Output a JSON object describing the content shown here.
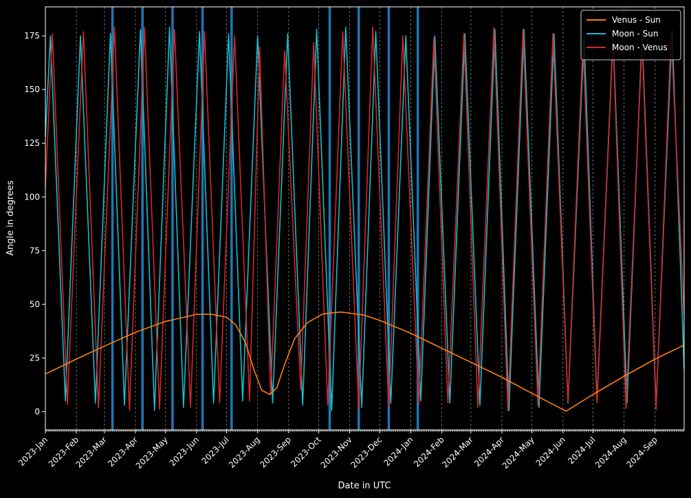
{
  "chart_data": {
    "type": "line",
    "title": "",
    "xlabel": "Date in UTC",
    "ylabel": "Angle in degrees",
    "x_range": [
      "2023-01-01",
      "2024-09-30"
    ],
    "ylim": [
      -8.5,
      188.5
    ],
    "y_ticks": [
      0,
      25,
      50,
      75,
      100,
      125,
      150,
      175
    ],
    "x_ticks": [
      {
        "date": "2023-01-01",
        "label": "2023-Jan"
      },
      {
        "date": "2023-02-01",
        "label": "2023-Feb"
      },
      {
        "date": "2023-03-01",
        "label": "2023-Mar"
      },
      {
        "date": "2023-04-01",
        "label": "2023-Apr"
      },
      {
        "date": "2023-05-01",
        "label": "2023-May"
      },
      {
        "date": "2023-06-01",
        "label": "2023-Jun"
      },
      {
        "date": "2023-07-01",
        "label": "2023-Jul"
      },
      {
        "date": "2023-08-01",
        "label": "2023-Aug"
      },
      {
        "date": "2023-09-01",
        "label": "2023-Sep"
      },
      {
        "date": "2023-10-01",
        "label": "2023-Oct"
      },
      {
        "date": "2023-11-01",
        "label": "2023-Nov"
      },
      {
        "date": "2023-12-01",
        "label": "2023-Dec"
      },
      {
        "date": "2024-01-01",
        "label": "2024-Jan"
      },
      {
        "date": "2024-02-01",
        "label": "2024-Feb"
      },
      {
        "date": "2024-03-01",
        "label": "2024-Mar"
      },
      {
        "date": "2024-04-01",
        "label": "2024-Apr"
      },
      {
        "date": "2024-05-01",
        "label": "2024-May"
      },
      {
        "date": "2024-06-01",
        "label": "2024-Jun"
      },
      {
        "date": "2024-07-01",
        "label": "2024-Jul"
      },
      {
        "date": "2024-08-01",
        "label": "2024-Aug"
      },
      {
        "date": "2024-09-01",
        "label": "2024-Sep"
      }
    ],
    "grid": "vertical dashed at month starts",
    "legend_position": "top-right",
    "series": [
      {
        "name": "Venus - Sun",
        "color": "#ff7f0e",
        "points": [
          [
            "2023-01-01",
            17.5
          ],
          [
            "2023-02-01",
            24.5
          ],
          [
            "2023-03-01",
            30.5
          ],
          [
            "2023-04-01",
            37.0
          ],
          [
            "2023-05-01",
            42.0
          ],
          [
            "2023-06-01",
            45.3
          ],
          [
            "2023-06-15",
            45.4
          ],
          [
            "2023-07-01",
            44.0
          ],
          [
            "2023-07-10",
            40.5
          ],
          [
            "2023-07-20",
            32.0
          ],
          [
            "2023-07-28",
            20.0
          ],
          [
            "2023-08-05",
            10.0
          ],
          [
            "2023-08-13",
            8.0
          ],
          [
            "2023-08-20",
            11.0
          ],
          [
            "2023-08-28",
            22.0
          ],
          [
            "2023-09-07",
            34.0
          ],
          [
            "2023-09-20",
            41.5
          ],
          [
            "2023-10-05",
            45.5
          ],
          [
            "2023-10-23",
            46.4
          ],
          [
            "2023-11-15",
            45.0
          ],
          [
            "2023-12-01",
            42.5
          ],
          [
            "2024-01-01",
            36.5
          ],
          [
            "2024-02-01",
            29.5
          ],
          [
            "2024-03-01",
            23.0
          ],
          [
            "2024-04-01",
            16.0
          ],
          [
            "2024-05-01",
            8.5
          ],
          [
            "2024-06-04",
            0.2
          ],
          [
            "2024-07-01",
            8.0
          ],
          [
            "2024-08-01",
            16.5
          ],
          [
            "2024-09-01",
            24.5
          ],
          [
            "2024-09-30",
            31.0
          ]
        ]
      },
      {
        "name": "Moon - Sun",
        "color": "#17becf",
        "points": [
          [
            "2023-01-01",
            128
          ],
          [
            "2023-01-06",
            175
          ],
          [
            "2023-01-21",
            5
          ],
          [
            "2023-02-05",
            175
          ],
          [
            "2023-02-20",
            4
          ],
          [
            "2023-03-07",
            176
          ],
          [
            "2023-03-21",
            3
          ],
          [
            "2023-04-06",
            178
          ],
          [
            "2023-04-20",
            0.5
          ],
          [
            "2023-05-05",
            179
          ],
          [
            "2023-05-19",
            2
          ],
          [
            "2023-06-04",
            177
          ],
          [
            "2023-06-18",
            4
          ],
          [
            "2023-07-03",
            176
          ],
          [
            "2023-07-17",
            5
          ],
          [
            "2023-08-01",
            175
          ],
          [
            "2023-08-16",
            4
          ],
          [
            "2023-08-31",
            176
          ],
          [
            "2023-09-15",
            3
          ],
          [
            "2023-09-29",
            178
          ],
          [
            "2023-10-14",
            0.5
          ],
          [
            "2023-10-28",
            179
          ],
          [
            "2023-11-13",
            2
          ],
          [
            "2023-11-27",
            177
          ],
          [
            "2023-12-12",
            4
          ],
          [
            "2023-12-27",
            175
          ],
          [
            "2024-01-11",
            5
          ],
          [
            "2024-01-25",
            175
          ],
          [
            "2024-02-09",
            4
          ],
          [
            "2024-02-24",
            176
          ],
          [
            "2024-03-10",
            3
          ],
          [
            "2024-03-25",
            178
          ],
          [
            "2024-04-08",
            0.5
          ],
          [
            "2024-04-23",
            178
          ],
          [
            "2024-05-08",
            2
          ],
          [
            "2024-05-23",
            176
          ],
          [
            "2024-06-06",
            4
          ],
          [
            "2024-06-22",
            175
          ],
          [
            "2024-07-05",
            5
          ],
          [
            "2024-07-21",
            175
          ],
          [
            "2024-08-04",
            4
          ],
          [
            "2024-08-19",
            176
          ],
          [
            "2024-09-02",
            3
          ],
          [
            "2024-09-18",
            178
          ],
          [
            "2024-09-30",
            20
          ]
        ]
      },
      {
        "name": "Moon - Venus",
        "color": "#d62728",
        "points": [
          [
            "2023-01-01",
            105
          ],
          [
            "2023-01-08",
            176
          ],
          [
            "2023-01-23",
            3.5
          ],
          [
            "2023-02-08",
            177
          ],
          [
            "2023-02-23",
            2
          ],
          [
            "2023-03-11",
            179
          ],
          [
            "2023-03-26",
            0.5
          ],
          [
            "2023-04-10",
            179
          ],
          [
            "2023-04-25",
            1
          ],
          [
            "2023-05-10",
            178
          ],
          [
            "2023-05-26",
            2
          ],
          [
            "2023-06-09",
            177
          ],
          [
            "2023-06-24",
            4
          ],
          [
            "2023-07-09",
            175
          ],
          [
            "2023-07-24",
            5
          ],
          [
            "2023-08-03",
            170
          ],
          [
            "2023-08-14",
            8
          ],
          [
            "2023-08-28",
            168
          ],
          [
            "2023-09-13",
            10
          ],
          [
            "2023-09-26",
            172
          ],
          [
            "2023-10-10",
            3
          ],
          [
            "2023-10-25",
            177
          ],
          [
            "2023-11-10",
            1
          ],
          [
            "2023-11-24",
            179
          ],
          [
            "2023-12-10",
            2
          ],
          [
            "2023-12-24",
            175
          ],
          [
            "2024-01-09",
            3
          ],
          [
            "2024-01-24",
            174
          ],
          [
            "2024-02-07",
            4
          ],
          [
            "2024-02-23",
            176
          ],
          [
            "2024-03-08",
            2
          ],
          [
            "2024-03-24",
            179
          ],
          [
            "2024-04-07",
            0.5
          ],
          [
            "2024-04-22",
            178
          ],
          [
            "2024-05-07",
            3
          ],
          [
            "2024-05-22",
            176
          ],
          [
            "2024-06-06",
            4.5
          ],
          [
            "2024-06-21",
            172
          ],
          [
            "2024-07-05",
            4
          ],
          [
            "2024-07-21",
            173
          ],
          [
            "2024-08-03",
            1.5
          ],
          [
            "2024-08-19",
            172
          ],
          [
            "2024-09-02",
            1
          ],
          [
            "2024-09-17",
            176
          ],
          [
            "2024-09-30",
            45
          ]
        ]
      }
    ],
    "eclipse_markers": {
      "color": "#1f77b4",
      "dates": [
        "2023-03-09",
        "2023-04-08",
        "2023-05-08",
        "2023-06-07",
        "2023-07-06",
        "2023-10-12",
        "2023-11-10",
        "2023-12-10",
        "2024-01-08"
      ]
    }
  }
}
